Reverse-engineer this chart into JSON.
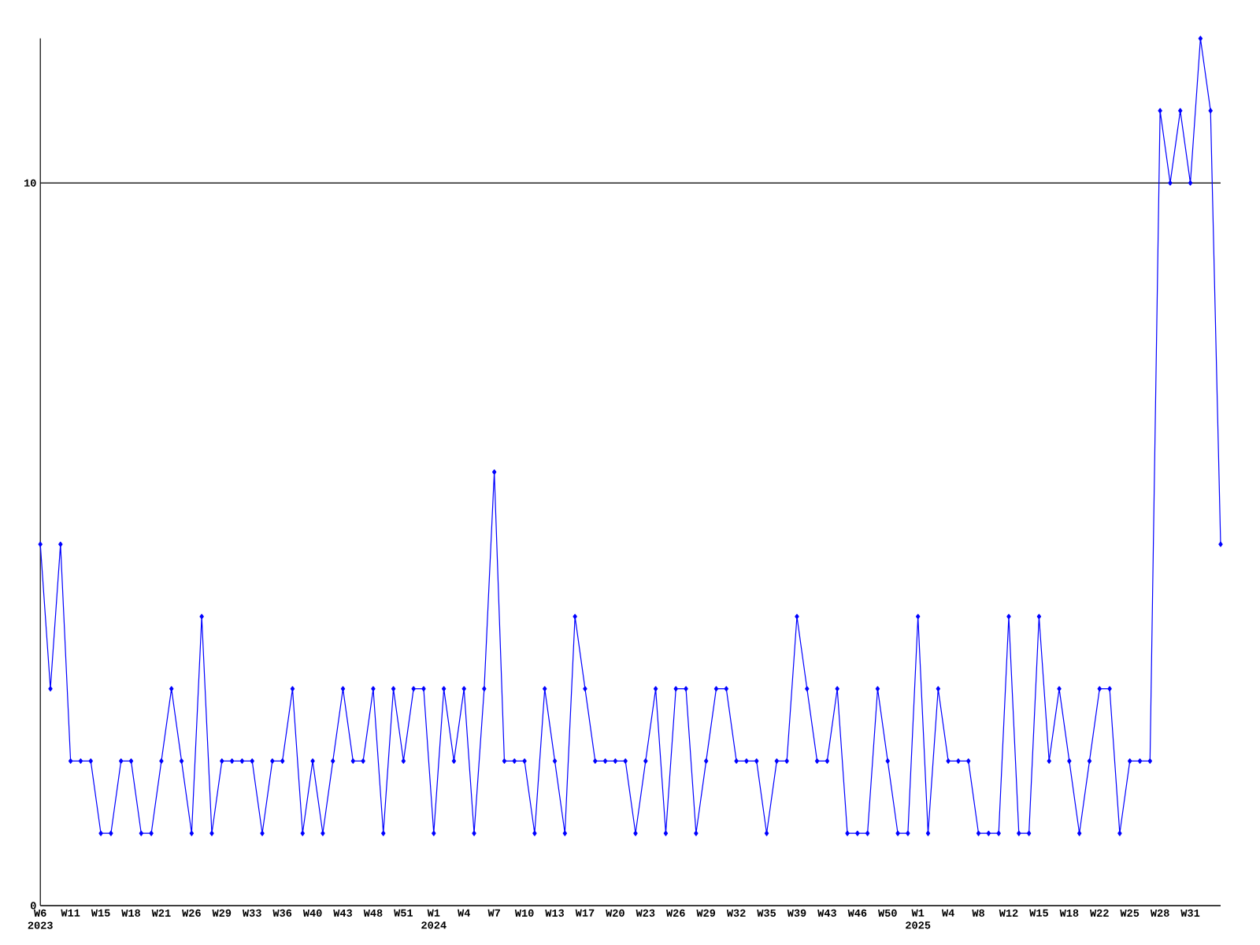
{
  "chart_data": {
    "type": "line",
    "categories": [
      "W6 2023",
      null,
      null,
      "W11",
      null,
      null,
      "W15",
      null,
      null,
      "W18",
      null,
      null,
      "W21",
      null,
      null,
      "W26",
      null,
      null,
      "W29",
      null,
      null,
      "W33",
      null,
      null,
      "W36",
      null,
      null,
      "W40",
      null,
      null,
      "W43",
      null,
      null,
      "W48",
      null,
      null,
      "W51",
      null,
      null,
      "W1 2024",
      null,
      null,
      "W4",
      null,
      null,
      "W7",
      null,
      null,
      "W10",
      null,
      null,
      "W13",
      null,
      null,
      "W17",
      null,
      null,
      "W20",
      null,
      null,
      "W23",
      null,
      null,
      "W26",
      null,
      null,
      "W29",
      null,
      null,
      "W32",
      null,
      null,
      "W35",
      null,
      null,
      "W39",
      null,
      null,
      "W43",
      null,
      null,
      "W46",
      null,
      null,
      "W50",
      null,
      null,
      "W1 2025",
      null,
      null,
      "W4",
      null,
      null,
      "W8",
      null,
      null,
      "W12",
      null,
      null,
      "W15",
      null,
      null,
      "W18",
      null,
      null,
      "W22",
      null,
      null,
      "W25",
      null,
      null,
      "W28",
      null,
      null,
      "W31",
      null,
      null,
      null
    ],
    "series": [
      {
        "color": "#0000ff",
        "values": [
          5,
          3,
          5,
          2,
          2,
          2,
          1,
          1,
          2,
          2,
          1,
          1,
          2,
          3,
          2,
          1,
          4,
          1,
          2,
          2,
          2,
          2,
          1,
          2,
          2,
          3,
          1,
          2,
          1,
          2,
          3,
          2,
          2,
          3,
          1,
          3,
          2,
          3,
          3,
          1,
          3,
          2,
          3,
          1,
          3,
          6,
          2,
          2,
          2,
          1,
          3,
          2,
          1,
          4,
          3,
          2,
          2,
          2,
          2,
          1,
          2,
          3,
          1,
          3,
          3,
          1,
          2,
          3,
          3,
          2,
          2,
          2,
          1,
          2,
          2,
          4,
          3,
          2,
          2,
          3,
          1,
          1,
          1,
          3,
          2,
          1,
          1,
          4,
          1,
          3,
          2,
          2,
          2,
          1,
          1,
          1,
          4,
          1,
          1,
          4,
          2,
          3,
          2,
          1,
          2,
          3,
          3,
          1,
          2,
          2,
          2,
          11,
          10,
          11,
          10,
          12,
          11,
          5
        ]
      }
    ],
    "ylim": [
      0,
      12
    ],
    "yticks": [
      0,
      10
    ],
    "grid": "y",
    "marker": "diamond",
    "line_style": "solid"
  }
}
